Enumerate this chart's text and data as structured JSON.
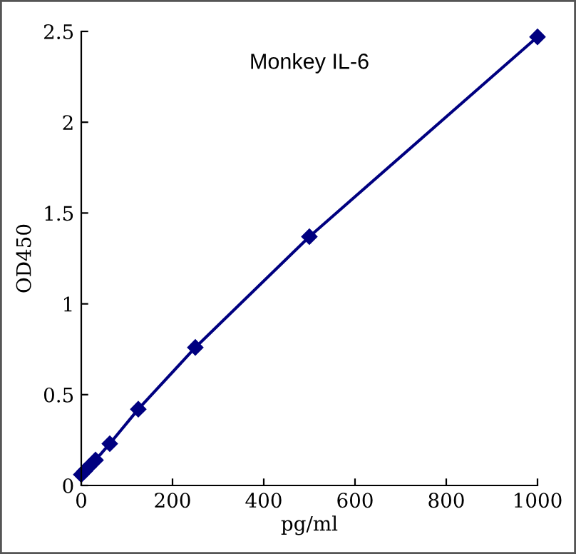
{
  "chart_data": {
    "type": "line",
    "title": "Monkey IL-6",
    "xlabel": "pg/ml",
    "ylabel": "OD450",
    "x": [
      0,
      7.8,
      15.6,
      31.25,
      62.5,
      125,
      250,
      500,
      1000
    ],
    "series": [
      {
        "color": "#000080",
        "values": [
          0.06,
          0.08,
          0.1,
          0.14,
          0.23,
          0.42,
          0.76,
          1.37,
          2.47
        ]
      }
    ],
    "xlim": [
      0,
      1000
    ],
    "xticks": [
      0,
      200,
      400,
      600,
      800,
      1000
    ],
    "ylim": [
      0,
      2.5
    ],
    "yticks": [
      0,
      {
        "value": 0.5,
        "label": "0.5"
      },
      1,
      {
        "value": 1.5,
        "label": "1.5"
      },
      2,
      {
        "value": 2.5,
        "label": "2.5"
      }
    ],
    "marker": "diamond",
    "line_style": "solid",
    "grid": false,
    "legend": false
  }
}
